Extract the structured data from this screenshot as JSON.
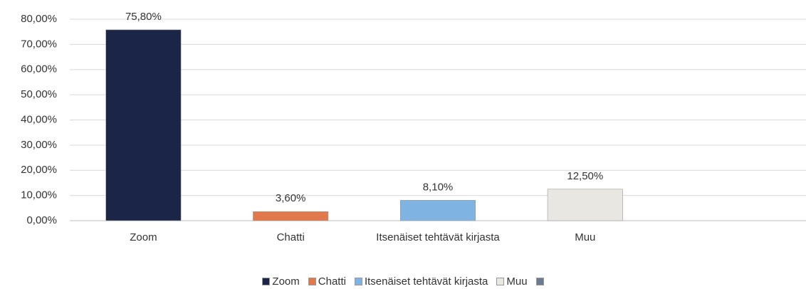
{
  "chart_data": {
    "type": "bar",
    "categories": [
      "Zoom",
      "Chatti",
      "Itsenäiset tehtävät kirjasta",
      "Muu",
      null
    ],
    "values": [
      75.8,
      3.6,
      8.1,
      12.5,
      null
    ],
    "value_labels": [
      "75,80%",
      "3,60%",
      "8,10%",
      "12,50%",
      null
    ],
    "colors": [
      "#1b2547",
      "#e2794c",
      "#7fb4e2",
      "#e9e7e1",
      "#6d7b90"
    ],
    "ylim": [
      0,
      80
    ],
    "yticks": [
      {
        "value": 0,
        "label": "0,00%"
      },
      {
        "value": 10,
        "label": "10,00%"
      },
      {
        "value": 20,
        "label": "20,00%"
      },
      {
        "value": 30,
        "label": "30,00%"
      },
      {
        "value": 40,
        "label": "40,00%"
      },
      {
        "value": 50,
        "label": "50,00%"
      },
      {
        "value": 60,
        "label": "60,00%"
      },
      {
        "value": 70,
        "label": "70,00%"
      },
      {
        "value": 80,
        "label": "80,00%"
      }
    ],
    "grid": true,
    "legend": "bottom"
  }
}
